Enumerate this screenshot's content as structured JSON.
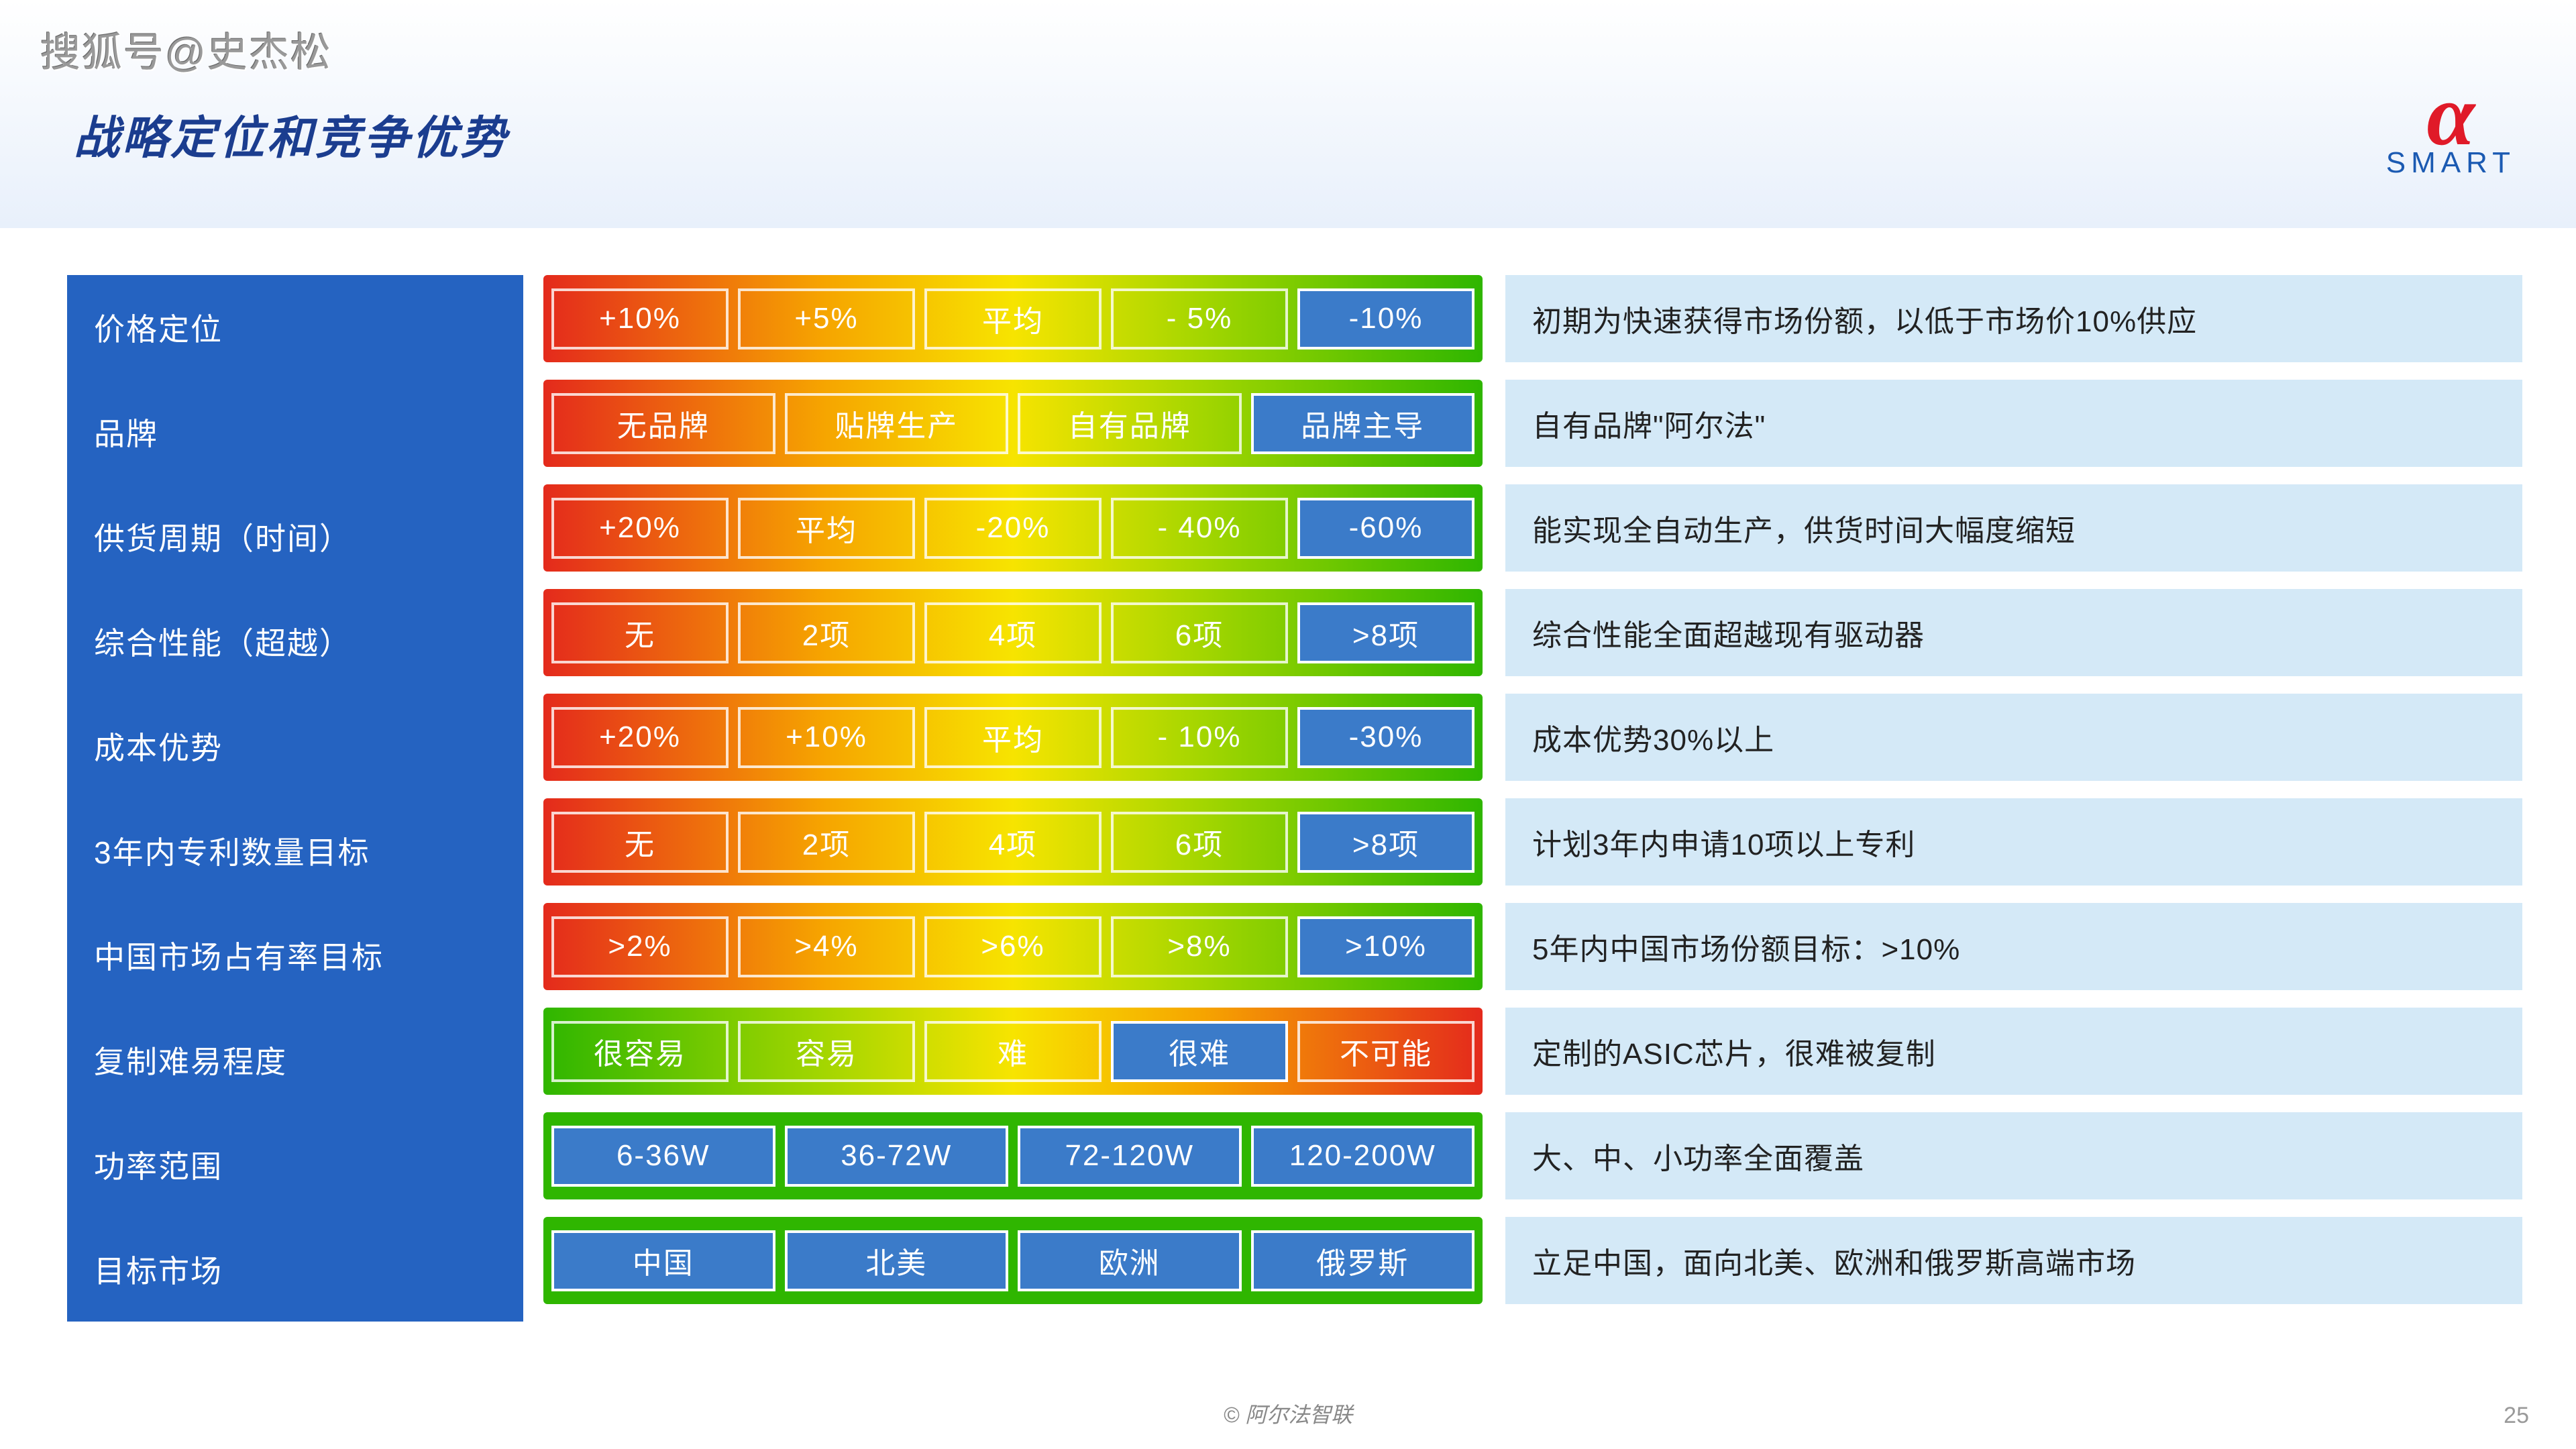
{
  "watermark": "搜狐号@史杰松",
  "title": "战略定位和竞争优势",
  "logo": {
    "alpha": "α",
    "text": "SMART"
  },
  "footer": "© 阿尔法智联",
  "page_number": "25",
  "labels": [
    "价格定位",
    "品牌",
    "供货周期（时间）",
    "综合性能（超越）",
    "成本优势",
    "3年内专利数量目标",
    "中国市场占有率目标",
    "复制难易程度",
    "功率范围",
    "目标市场"
  ],
  "rows": [
    {
      "type": "grad-r2g",
      "cells": [
        "+10%",
        "+5%",
        "平均",
        "- 5%",
        "-10%"
      ],
      "selected": 4,
      "desc": "初期为快速获得市场份额，以低于市场价10%供应"
    },
    {
      "type": "grad-r2g",
      "cells": [
        "无品牌",
        "贴牌生产",
        "自有品牌",
        "品牌主导",
        ""
      ],
      "visible": 4,
      "selected": 3,
      "desc": "自有品牌\"阿尔法\""
    },
    {
      "type": "grad-r2g",
      "cells": [
        "+20%",
        "平均",
        "-20%",
        "- 40%",
        "-60%"
      ],
      "selected": 4,
      "desc": "能实现全自动生产，供货时间大幅度缩短"
    },
    {
      "type": "grad-r2g",
      "cells": [
        "无",
        "2项",
        "4项",
        "6项",
        ">8项"
      ],
      "selected": 4,
      "desc": "综合性能全面超越现有驱动器"
    },
    {
      "type": "grad-r2g",
      "cells": [
        "+20%",
        "+10%",
        "平均",
        "- 10%",
        "-30%"
      ],
      "selected": 4,
      "desc": "成本优势30%以上"
    },
    {
      "type": "grad-r2g",
      "cells": [
        "无",
        "2项",
        "4项",
        "6项",
        ">8项"
      ],
      "selected": 4,
      "desc": "计划3年内申请10项以上专利"
    },
    {
      "type": "grad-r2g",
      "cells": [
        ">2%",
        ">4%",
        ">6%",
        ">8%",
        ">10%"
      ],
      "selected": 4,
      "desc": "5年内中国市场份额目标：>10%"
    },
    {
      "type": "grad-g2r",
      "cells": [
        "很容易",
        "容易",
        "难",
        "很难",
        "不可能"
      ],
      "selected": 3,
      "desc": "定制的ASIC芯片，很难被复制"
    },
    {
      "type": "flat-green",
      "cells": [
        "6-36W",
        "36-72W",
        "72-120W",
        "120-200W"
      ],
      "allselected": true,
      "desc": "大、中、小功率全面覆盖"
    },
    {
      "type": "flat-green",
      "cells": [
        "中国",
        "北美",
        "欧洲",
        "俄罗斯"
      ],
      "allselected": true,
      "desc": "立足中国，面向北美、欧洲和俄罗斯高端市场"
    }
  ]
}
